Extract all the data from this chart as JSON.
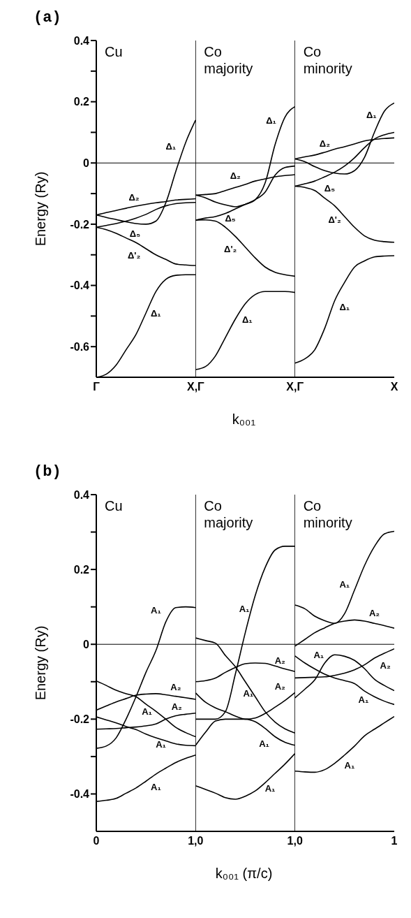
{
  "chart_data": [
    {
      "type": "line",
      "title": "(a)",
      "xlabel": "k₀₀₁",
      "ylabel": "Energy (Ry)",
      "ylim": [
        -0.7,
        0.4
      ],
      "categories": [
        "Γ",
        null,
        null,
        null,
        null,
        null,
        null,
        null,
        null,
        null,
        "X,Γ",
        null,
        null,
        null,
        null,
        null,
        null,
        null,
        null,
        null,
        "X,Γ",
        null,
        null,
        null,
        null,
        null,
        null,
        null,
        null,
        null,
        "X"
      ],
      "yticks": [
        {
          "value": -0.5,
          "label": null
        },
        {
          "value": -0.3,
          "label": null
        },
        {
          "value": -0.1,
          "label": null
        },
        {
          "value": 0.1,
          "label": null
        },
        {
          "value": 0.3,
          "label": null
        },
        -0.6,
        -0.4,
        -0.2,
        0,
        0.2,
        0.4
      ],
      "ref_lines": [
        {
          "axis": "y",
          "value": 0,
          "color": "#000000"
        }
      ],
      "series": [
        {
          "color": "#000000",
          "values": [
            -0.7,
            -0.69,
            -0.66,
            -0.61,
            -0.56,
            -0.49,
            -0.42,
            -0.38,
            -0.367,
            -0.365,
            -0.365,
            null,
            null,
            null,
            null,
            null,
            null,
            null,
            null,
            null,
            null,
            null,
            null,
            null,
            null,
            null,
            null,
            null,
            null,
            null,
            null
          ]
        },
        {
          "color": "#000000",
          "values": [
            -0.21,
            -0.218,
            -0.23,
            -0.245,
            -0.26,
            -0.28,
            -0.3,
            -0.315,
            -0.33,
            -0.333,
            -0.335,
            null,
            null,
            null,
            null,
            null,
            null,
            null,
            null,
            null,
            null,
            null,
            null,
            null,
            null,
            null,
            null,
            null,
            null,
            null,
            null
          ]
        },
        {
          "color": "#000000",
          "values": [
            -0.21,
            -0.204,
            -0.198,
            -0.19,
            -0.18,
            -0.168,
            -0.152,
            -0.14,
            -0.133,
            -0.13,
            -0.129,
            null,
            null,
            null,
            null,
            null,
            null,
            null,
            null,
            null,
            null,
            null,
            null,
            null,
            null,
            null,
            null,
            null,
            null,
            null,
            null
          ]
        },
        {
          "color": "#000000",
          "values": [
            -0.17,
            -0.162,
            -0.155,
            -0.148,
            -0.141,
            -0.135,
            -0.13,
            -0.126,
            -0.121,
            -0.119,
            -0.117,
            null,
            null,
            null,
            null,
            null,
            null,
            null,
            null,
            null,
            null,
            null,
            null,
            null,
            null,
            null,
            null,
            null,
            null,
            null,
            null
          ]
        },
        {
          "color": "#000000",
          "values": [
            -0.17,
            -0.178,
            -0.185,
            -0.192,
            -0.198,
            -0.2,
            -0.19,
            -0.13,
            -0.028,
            0.067,
            0.14,
            null,
            null,
            null,
            null,
            null,
            null,
            null,
            null,
            null,
            null,
            null,
            null,
            null,
            null,
            null,
            null,
            null,
            null,
            null,
            null
          ]
        },
        {
          "color": "#000000",
          "values": [
            null,
            null,
            null,
            null,
            null,
            null,
            null,
            null,
            null,
            null,
            -0.675,
            -0.665,
            -0.63,
            -0.57,
            -0.51,
            -0.46,
            -0.43,
            -0.42,
            -0.42,
            -0.42,
            -0.423,
            null,
            null,
            null,
            null,
            null,
            null,
            null,
            null,
            null,
            null
          ]
        },
        {
          "color": "#000000",
          "values": [
            null,
            null,
            null,
            null,
            null,
            null,
            null,
            null,
            null,
            null,
            -0.187,
            -0.186,
            -0.19,
            -0.21,
            -0.24,
            -0.275,
            -0.31,
            -0.34,
            -0.357,
            -0.365,
            -0.37,
            null,
            null,
            null,
            null,
            null,
            null,
            null,
            null,
            null,
            null
          ]
        },
        {
          "color": "#000000",
          "values": [
            null,
            null,
            null,
            null,
            null,
            null,
            null,
            null,
            null,
            null,
            -0.187,
            -0.18,
            -0.175,
            -0.165,
            -0.15,
            -0.135,
            -0.12,
            -0.095,
            -0.04,
            -0.015,
            -0.01,
            null,
            null,
            null,
            null,
            null,
            null,
            null,
            null,
            null,
            null
          ]
        },
        {
          "color": "#000000",
          "values": [
            null,
            null,
            null,
            null,
            null,
            null,
            null,
            null,
            null,
            null,
            -0.105,
            -0.103,
            -0.1,
            -0.09,
            -0.08,
            -0.07,
            -0.059,
            -0.052,
            -0.045,
            -0.041,
            -0.038,
            null,
            null,
            null,
            null,
            null,
            null,
            null,
            null,
            null,
            null
          ]
        },
        {
          "color": "#000000",
          "values": [
            null,
            null,
            null,
            null,
            null,
            null,
            null,
            null,
            null,
            null,
            -0.105,
            -0.114,
            -0.128,
            -0.137,
            -0.143,
            -0.135,
            -0.12,
            -0.065,
            0.06,
            0.15,
            0.184,
            null,
            null,
            null,
            null,
            null,
            null,
            null,
            null,
            null,
            null
          ]
        },
        {
          "color": "#000000",
          "values": [
            null,
            null,
            null,
            null,
            null,
            null,
            null,
            null,
            null,
            null,
            null,
            null,
            null,
            null,
            null,
            null,
            null,
            null,
            null,
            null,
            -0.654,
            -0.64,
            -0.61,
            -0.54,
            -0.45,
            -0.39,
            -0.34,
            -0.32,
            -0.307,
            -0.304,
            -0.303
          ]
        },
        {
          "color": "#000000",
          "values": [
            null,
            null,
            null,
            null,
            null,
            null,
            null,
            null,
            null,
            null,
            null,
            null,
            null,
            null,
            null,
            null,
            null,
            null,
            null,
            null,
            -0.076,
            -0.08,
            -0.09,
            -0.115,
            -0.14,
            -0.175,
            -0.21,
            -0.238,
            -0.252,
            -0.257,
            -0.259
          ]
        },
        {
          "color": "#000000",
          "values": [
            null,
            null,
            null,
            null,
            null,
            null,
            null,
            null,
            null,
            null,
            null,
            null,
            null,
            null,
            null,
            null,
            null,
            null,
            null,
            null,
            -0.076,
            -0.068,
            -0.059,
            -0.045,
            -0.03,
            -0.01,
            0.017,
            0.05,
            0.078,
            0.092,
            0.1
          ]
        },
        {
          "color": "#000000",
          "values": [
            null,
            null,
            null,
            null,
            null,
            null,
            null,
            null,
            null,
            null,
            null,
            null,
            null,
            null,
            null,
            null,
            null,
            null,
            null,
            null,
            0.013,
            0.02,
            0.026,
            0.035,
            0.045,
            0.053,
            0.062,
            0.072,
            0.077,
            0.08,
            0.082
          ]
        },
        {
          "color": "#000000",
          "values": [
            null,
            null,
            null,
            null,
            null,
            null,
            null,
            null,
            null,
            null,
            null,
            null,
            null,
            null,
            null,
            null,
            null,
            null,
            null,
            null,
            0.013,
            0.004,
            -0.012,
            -0.025,
            -0.033,
            -0.036,
            -0.025,
            0.018,
            0.1,
            0.169,
            0.196
          ]
        }
      ],
      "annotations": [
        "Cu",
        "Co majority",
        "Co minority",
        "Δ₁",
        "Δ₂",
        "Δ₅",
        "Δ'₂",
        "Δ₁",
        "Δ₁",
        "Δ₂",
        "Δ₅",
        "Δ'₂",
        "Δ₁",
        "Δ₁",
        "Δ₂",
        "Δ₅",
        "Δ'₂",
        "Δ₁"
      ]
    },
    {
      "type": "line",
      "title": "(b)",
      "xlabel": "k₀₀₁ (π/c)",
      "ylabel": "Energy (Ry)",
      "ylim": [
        -0.5,
        0.4
      ],
      "categories": [
        "0",
        null,
        null,
        null,
        null,
        null,
        null,
        null,
        null,
        null,
        "1,0",
        null,
        null,
        null,
        null,
        null,
        null,
        null,
        null,
        null,
        "1,0",
        null,
        null,
        null,
        null,
        null,
        null,
        null,
        null,
        null,
        "1"
      ],
      "yticks": [
        {
          "value": -0.3,
          "label": null
        },
        {
          "value": -0.1,
          "label": null
        },
        {
          "value": 0.1,
          "label": null
        },
        {
          "value": 0.3,
          "label": null
        },
        -0.4,
        -0.2,
        0,
        0.2,
        0.4
      ],
      "ref_lines": [
        {
          "axis": "y",
          "value": 0,
          "color": "#000000"
        }
      ],
      "series": [
        {
          "color": "#000000",
          "values": [
            -0.42,
            -0.417,
            -0.412,
            -0.398,
            -0.384,
            -0.366,
            -0.347,
            -0.331,
            -0.316,
            -0.305,
            -0.296,
            null,
            null,
            null,
            null,
            null,
            null,
            null,
            null,
            null,
            null,
            null,
            null,
            null,
            null,
            null,
            null,
            null,
            null,
            null,
            null
          ]
        },
        {
          "color": "#000000",
          "values": [
            -0.278,
            -0.272,
            -0.25,
            -0.2,
            -0.14,
            -0.075,
            -0.017,
            0.06,
            0.098,
            0.1,
            0.098,
            null,
            null,
            null,
            null,
            null,
            null,
            null,
            null,
            null,
            null,
            null,
            null,
            null,
            null,
            null,
            null,
            null,
            null,
            null,
            null
          ]
        },
        {
          "color": "#000000",
          "values": [
            -0.098,
            -0.11,
            -0.123,
            -0.132,
            -0.14,
            -0.16,
            -0.179,
            -0.2,
            -0.222,
            -0.236,
            -0.247,
            null,
            null,
            null,
            null,
            null,
            null,
            null,
            null,
            null,
            null,
            null,
            null,
            null,
            null,
            null,
            null,
            null,
            null,
            null,
            null
          ]
        },
        {
          "color": "#000000",
          "values": [
            -0.176,
            -0.165,
            -0.154,
            -0.145,
            -0.136,
            -0.133,
            -0.132,
            -0.135,
            -0.139,
            -0.143,
            -0.147,
            null,
            null,
            null,
            null,
            null,
            null,
            null,
            null,
            null,
            null,
            null,
            null,
            null,
            null,
            null,
            null,
            null,
            null,
            null,
            null
          ]
        },
        {
          "color": "#000000",
          "values": [
            -0.194,
            -0.202,
            -0.21,
            -0.22,
            -0.228,
            -0.24,
            -0.25,
            -0.258,
            -0.266,
            -0.27,
            -0.271,
            null,
            null,
            null,
            null,
            null,
            null,
            null,
            null,
            null,
            null,
            null,
            null,
            null,
            null,
            null,
            null,
            null,
            null,
            null,
            null
          ]
        },
        {
          "color": "#000000",
          "values": [
            -0.227,
            -0.226,
            -0.225,
            -0.223,
            -0.221,
            -0.218,
            -0.213,
            -0.2,
            -0.191,
            -0.187,
            -0.184,
            null,
            null,
            null,
            null,
            null,
            null,
            null,
            null,
            null,
            null,
            null,
            null,
            null,
            null,
            null,
            null,
            null,
            null,
            null,
            null
          ]
        },
        {
          "color": "#000000",
          "values": [
            null,
            null,
            null,
            null,
            null,
            null,
            null,
            null,
            null,
            null,
            -0.378,
            -0.388,
            -0.398,
            -0.41,
            -0.414,
            -0.406,
            -0.392,
            -0.37,
            -0.345,
            -0.32,
            -0.292,
            null,
            null,
            null,
            null,
            null,
            null,
            null,
            null,
            null,
            null
          ]
        },
        {
          "color": "#000000",
          "values": [
            null,
            null,
            null,
            null,
            null,
            null,
            null,
            null,
            null,
            null,
            -0.2,
            -0.2,
            -0.2,
            -0.18,
            -0.08,
            0.031,
            0.13,
            0.205,
            0.252,
            0.262,
            0.262,
            null,
            null,
            null,
            null,
            null,
            null,
            null,
            null,
            null,
            null
          ]
        },
        {
          "color": "#000000",
          "values": [
            null,
            null,
            null,
            null,
            null,
            null,
            null,
            null,
            null,
            null,
            -0.27,
            -0.235,
            -0.205,
            -0.2,
            -0.2,
            -0.2,
            -0.207,
            -0.225,
            -0.247,
            -0.262,
            -0.27,
            null,
            null,
            null,
            null,
            null,
            null,
            null,
            null,
            null,
            null
          ]
        },
        {
          "color": "#000000",
          "values": [
            null,
            null,
            null,
            null,
            null,
            null,
            null,
            null,
            null,
            null,
            0.017,
            0.01,
            0.003,
            -0.03,
            -0.06,
            -0.1,
            -0.14,
            -0.18,
            -0.208,
            -0.226,
            -0.237,
            null,
            null,
            null,
            null,
            null,
            null,
            null,
            null,
            null,
            null
          ]
        },
        {
          "color": "#000000",
          "values": [
            null,
            null,
            null,
            null,
            null,
            null,
            null,
            null,
            null,
            null,
            -0.1,
            -0.097,
            -0.09,
            -0.075,
            -0.062,
            -0.052,
            -0.05,
            -0.051,
            -0.058,
            -0.066,
            -0.073,
            null,
            null,
            null,
            null,
            null,
            null,
            null,
            null,
            null,
            null
          ]
        },
        {
          "color": "#000000",
          "values": [
            null,
            null,
            null,
            null,
            null,
            null,
            null,
            null,
            null,
            null,
            -0.13,
            -0.155,
            -0.17,
            -0.18,
            -0.192,
            -0.2,
            -0.197,
            -0.185,
            -0.168,
            -0.15,
            -0.129,
            null,
            null,
            null,
            null,
            null,
            null,
            null,
            null,
            null,
            null
          ]
        },
        {
          "color": "#000000",
          "values": [
            null,
            null,
            null,
            null,
            null,
            null,
            null,
            null,
            null,
            null,
            null,
            null,
            null,
            null,
            null,
            null,
            null,
            null,
            null,
            null,
            -0.339,
            -0.341,
            -0.342,
            -0.335,
            -0.318,
            -0.296,
            -0.272,
            -0.245,
            -0.227,
            -0.21,
            -0.193
          ]
        },
        {
          "color": "#000000",
          "values": [
            null,
            null,
            null,
            null,
            null,
            null,
            null,
            null,
            null,
            null,
            null,
            null,
            null,
            null,
            null,
            null,
            null,
            null,
            null,
            null,
            0.105,
            0.095,
            0.075,
            0.063,
            0.056,
            0.082,
            0.145,
            0.21,
            0.261,
            0.295,
            0.302
          ]
        },
        {
          "color": "#000000",
          "values": [
            null,
            null,
            null,
            null,
            null,
            null,
            null,
            null,
            null,
            null,
            null,
            null,
            null,
            null,
            null,
            null,
            null,
            null,
            null,
            null,
            -0.005,
            0.013,
            0.031,
            0.044,
            0.056,
            0.062,
            0.065,
            0.062,
            0.056,
            0.05,
            0.043
          ]
        },
        {
          "color": "#000000",
          "values": [
            null,
            null,
            null,
            null,
            null,
            null,
            null,
            null,
            null,
            null,
            null,
            null,
            null,
            null,
            null,
            null,
            null,
            null,
            null,
            null,
            -0.031,
            -0.05,
            -0.066,
            -0.08,
            -0.09,
            -0.097,
            -0.105,
            -0.125,
            -0.14,
            -0.152,
            -0.161
          ]
        },
        {
          "color": "#000000",
          "values": [
            null,
            null,
            null,
            null,
            null,
            null,
            null,
            null,
            null,
            null,
            null,
            null,
            null,
            null,
            null,
            null,
            null,
            null,
            null,
            null,
            -0.09,
            -0.089,
            -0.088,
            -0.087,
            -0.083,
            -0.077,
            -0.068,
            -0.055,
            -0.037,
            -0.024,
            -0.012
          ]
        },
        {
          "color": "#000000",
          "values": [
            null,
            null,
            null,
            null,
            null,
            null,
            null,
            null,
            null,
            null,
            null,
            null,
            null,
            null,
            null,
            null,
            null,
            null,
            null,
            null,
            -0.143,
            -0.12,
            -0.095,
            -0.05,
            -0.028,
            -0.032,
            -0.043,
            -0.065,
            -0.093,
            -0.11,
            -0.124
          ]
        }
      ],
      "annotations": [
        "Cu",
        "Co majority",
        "Co minority",
        "A₁",
        "A₂",
        "A₁",
        "A₂",
        "A₁",
        "A₁",
        "A₁",
        "A₂",
        "A₂",
        "A₁",
        "A₁",
        "A₁",
        "A₁",
        "A₂",
        "A₁",
        "A₂",
        "A₁",
        "A₁"
      ]
    }
  ]
}
